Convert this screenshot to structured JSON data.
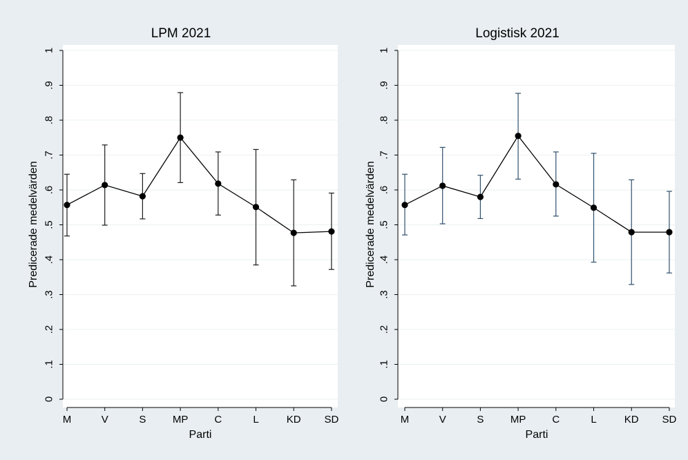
{
  "colors": {
    "outer_background": "#e8eef1",
    "plot_background": "#ffffff",
    "grid": "#eaf0f2",
    "axis": "#000000",
    "marker": "#000000",
    "line": "#000000",
    "errorbar_left": "#1a1a1a",
    "errorbar_right": "#2f4f6b"
  },
  "chart_data": [
    {
      "type": "line",
      "title": "LPM 2021",
      "xlabel": "Parti",
      "ylabel": "Predicerade medelvärden",
      "categories": [
        "M",
        "V",
        "S",
        "MP",
        "C",
        "L",
        "KD",
        "SD"
      ],
      "ylim": [
        0,
        1
      ],
      "yticks": [
        0,
        0.1,
        0.2,
        0.3,
        0.4,
        0.5,
        0.6,
        0.7,
        0.8,
        0.9,
        1
      ],
      "ytick_labels": [
        "0",
        ".1",
        ".2",
        ".3",
        ".4",
        ".5",
        ".6",
        ".7",
        ".8",
        ".9",
        "1"
      ],
      "grid": true,
      "series": [
        {
          "values": [
            0.557,
            0.614,
            0.582,
            0.75,
            0.618,
            0.551,
            0.477,
            0.481
          ],
          "lower": [
            0.468,
            0.499,
            0.517,
            0.621,
            0.528,
            0.385,
            0.325,
            0.372
          ],
          "upper": [
            0.645,
            0.729,
            0.647,
            0.879,
            0.709,
            0.716,
            0.629,
            0.591
          ]
        }
      ]
    },
    {
      "type": "line",
      "title": "Logistisk 2021",
      "xlabel": "Parti",
      "ylabel": "Predicerade medelvärden",
      "categories": [
        "M",
        "V",
        "S",
        "MP",
        "C",
        "L",
        "KD",
        "SD"
      ],
      "ylim": [
        0,
        1
      ],
      "yticks": [
        0,
        0.1,
        0.2,
        0.3,
        0.4,
        0.5,
        0.6,
        0.7,
        0.8,
        0.9,
        1
      ],
      "ytick_labels": [
        "0",
        ".1",
        ".2",
        ".3",
        ".4",
        ".5",
        ".6",
        ".7",
        ".8",
        ".9",
        "1"
      ],
      "grid": true,
      "series": [
        {
          "values": [
            0.557,
            0.612,
            0.58,
            0.755,
            0.616,
            0.549,
            0.479,
            0.479
          ],
          "lower": [
            0.471,
            0.503,
            0.518,
            0.631,
            0.525,
            0.393,
            0.329,
            0.362
          ],
          "upper": [
            0.645,
            0.722,
            0.642,
            0.877,
            0.709,
            0.705,
            0.629,
            0.596
          ]
        }
      ]
    }
  ]
}
